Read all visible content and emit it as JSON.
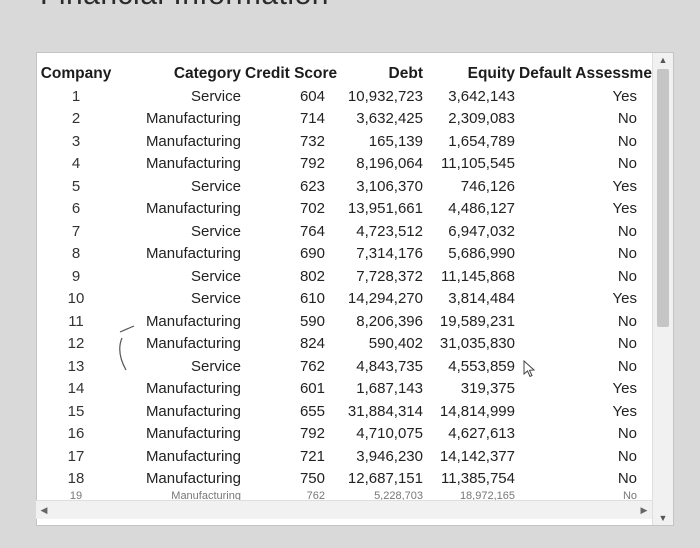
{
  "page": {
    "heading": "Financial Information"
  },
  "table": {
    "columns": [
      "Company",
      "Category",
      "Credit Score",
      "Debt",
      "Equity",
      "Default Assessment"
    ],
    "rows": [
      {
        "company": "1",
        "category": "Service",
        "score": "604",
        "debt": "10,932,723",
        "equity": "3,642,143",
        "default": "Yes"
      },
      {
        "company": "2",
        "category": "Manufacturing",
        "score": "714",
        "debt": "3,632,425",
        "equity": "2,309,083",
        "default": "No"
      },
      {
        "company": "3",
        "category": "Manufacturing",
        "score": "732",
        "debt": "165,139",
        "equity": "1,654,789",
        "default": "No"
      },
      {
        "company": "4",
        "category": "Manufacturing",
        "score": "792",
        "debt": "8,196,064",
        "equity": "11,105,545",
        "default": "No"
      },
      {
        "company": "5",
        "category": "Service",
        "score": "623",
        "debt": "3,106,370",
        "equity": "746,126",
        "default": "Yes"
      },
      {
        "company": "6",
        "category": "Manufacturing",
        "score": "702",
        "debt": "13,951,661",
        "equity": "4,486,127",
        "default": "Yes"
      },
      {
        "company": "7",
        "category": "Service",
        "score": "764",
        "debt": "4,723,512",
        "equity": "6,947,032",
        "default": "No"
      },
      {
        "company": "8",
        "category": "Manufacturing",
        "score": "690",
        "debt": "7,314,176",
        "equity": "5,686,990",
        "default": "No"
      },
      {
        "company": "9",
        "category": "Service",
        "score": "802",
        "debt": "7,728,372",
        "equity": "11,145,868",
        "default": "No"
      },
      {
        "company": "10",
        "category": "Service",
        "score": "610",
        "debt": "14,294,270",
        "equity": "3,814,484",
        "default": "Yes"
      },
      {
        "company": "11",
        "category": "Manufacturing",
        "score": "590",
        "debt": "8,206,396",
        "equity": "19,589,231",
        "default": "No"
      },
      {
        "company": "12",
        "category": "Manufacturing",
        "score": "824",
        "debt": "590,402",
        "equity": "31,035,830",
        "default": "No"
      },
      {
        "company": "13",
        "category": "Service",
        "score": "762",
        "debt": "4,843,735",
        "equity": "4,553,859",
        "default": "No"
      },
      {
        "company": "14",
        "category": "Manufacturing",
        "score": "601",
        "debt": "1,687,143",
        "equity": "319,375",
        "default": "Yes"
      },
      {
        "company": "15",
        "category": "Manufacturing",
        "score": "655",
        "debt": "31,884,314",
        "equity": "14,814,999",
        "default": "Yes"
      },
      {
        "company": "16",
        "category": "Manufacturing",
        "score": "792",
        "debt": "4,710,075",
        "equity": "4,627,613",
        "default": "No"
      },
      {
        "company": "17",
        "category": "Manufacturing",
        "score": "721",
        "debt": "3,946,230",
        "equity": "14,142,377",
        "default": "No"
      },
      {
        "company": "18",
        "category": "Manufacturing",
        "score": "750",
        "debt": "12,687,151",
        "equity": "11,385,754",
        "default": "No"
      },
      {
        "company": "19",
        "category": "Manufacturing",
        "score": "762",
        "debt": "5,228,703",
        "equity": "18,972,165",
        "default": "No"
      }
    ]
  },
  "icons": {
    "scroll_up": "scroll-up-arrow",
    "scroll_down": "scroll-down-arrow",
    "scroll_left": "scroll-left-arrow",
    "scroll_right": "scroll-right-arrow",
    "cursor": "mouse-pointer-arrow"
  },
  "colors": {
    "page_background": "#d9d9d9",
    "panel_background": "#ffffff",
    "text": "#222222",
    "scroll_thumb": "#c5c5c5"
  }
}
